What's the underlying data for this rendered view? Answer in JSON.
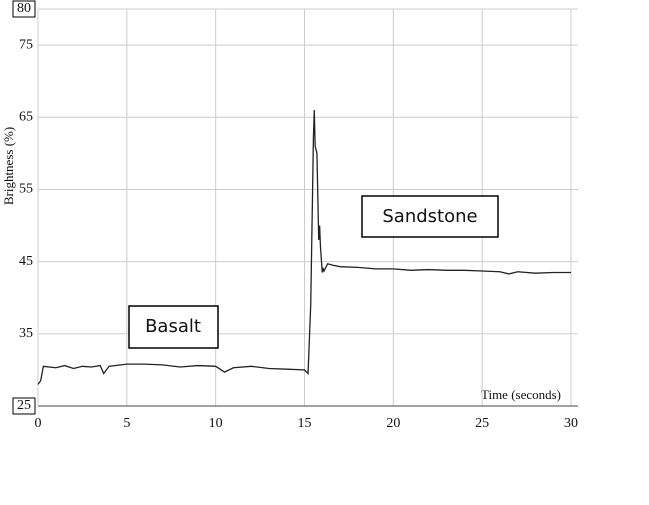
{
  "chart_data": {
    "type": "line",
    "x_label": "Time (seconds)",
    "y_label": "Brightness (%)",
    "xlim": [
      0,
      30
    ],
    "xticks": [
      0,
      5,
      10,
      15,
      20,
      25,
      30
    ],
    "ylim": [
      25,
      80
    ],
    "yticks": [
      25,
      35,
      45,
      55,
      65,
      75,
      80
    ],
    "grid": true,
    "color": "#222",
    "x": [
      0,
      0.15,
      0.3,
      1,
      1.5,
      2,
      2.5,
      3,
      3.5,
      3.7,
      4,
      5,
      6,
      7,
      8,
      9,
      10,
      10.5,
      11,
      12,
      13,
      14,
      15,
      15.2,
      15.35,
      15.45,
      15.5,
      15.55,
      15.6,
      15.7,
      15.8,
      15.85,
      15.9,
      16,
      16.05,
      16.1,
      16.3,
      16.6,
      17,
      18,
      19,
      20,
      21,
      22,
      23,
      24,
      25,
      26,
      26.5,
      27,
      28,
      29,
      30
    ],
    "values": [
      28,
      28.5,
      30.5,
      30.3,
      30.6,
      30.2,
      30.5,
      30.4,
      30.6,
      29.5,
      30.5,
      30.8,
      30.8,
      30.7,
      30.4,
      30.6,
      30.5,
      29.7,
      30.3,
      30.5,
      30.2,
      30.1,
      30,
      29.5,
      39,
      54,
      62,
      66,
      61,
      60,
      48,
      50,
      47,
      43.5,
      44,
      43.7,
      44.7,
      44.5,
      44.3,
      44.2,
      44.0,
      44.0,
      43.8,
      43.9,
      43.8,
      43.8,
      43.7,
      43.6,
      43.3,
      43.6,
      43.4,
      43.5,
      43.5
    ],
    "annotations": [
      "Basalt",
      "Sandstone"
    ]
  }
}
